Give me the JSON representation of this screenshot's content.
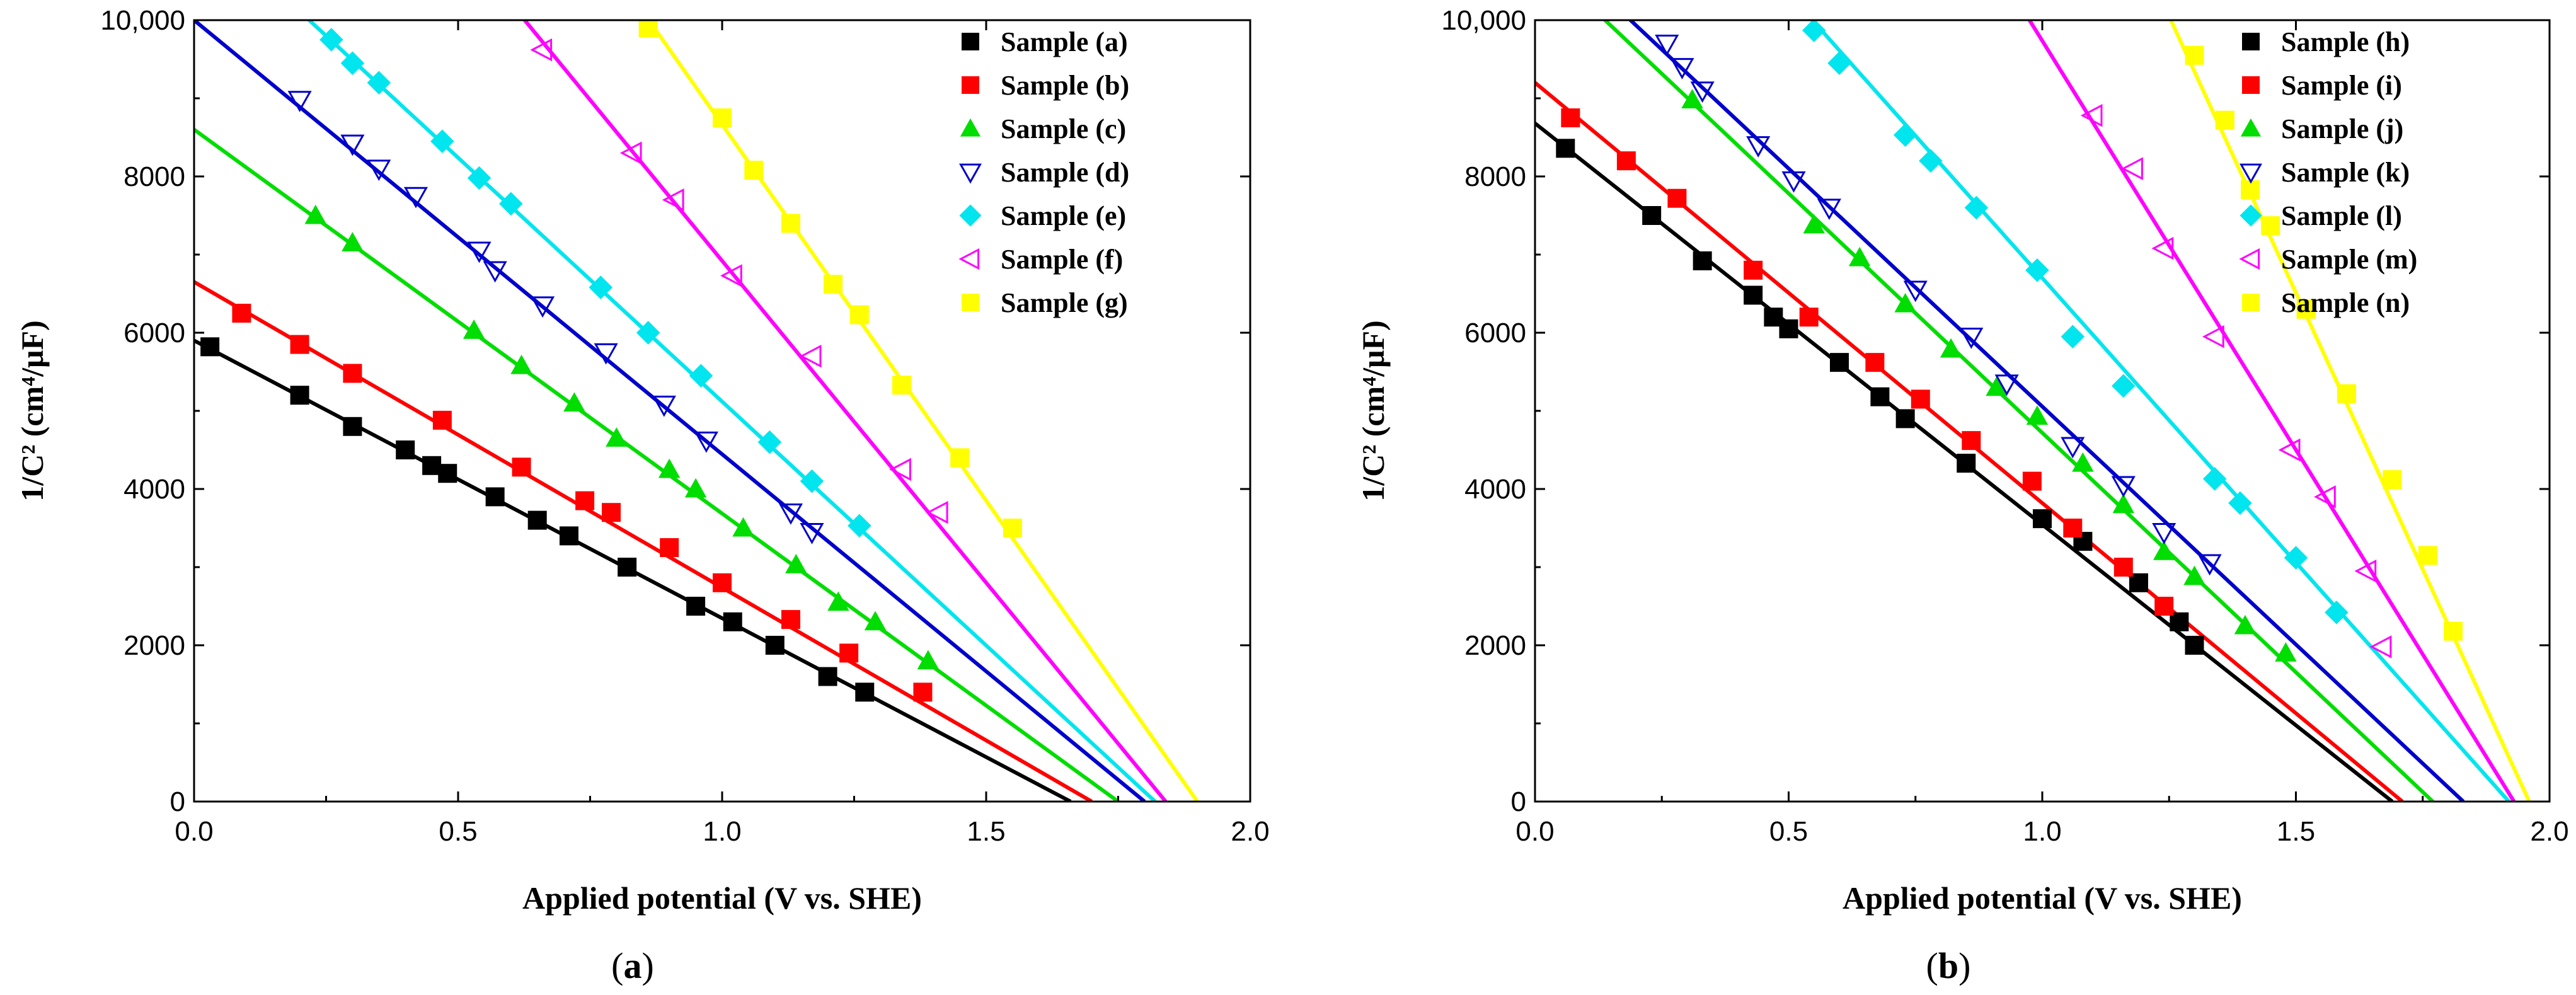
{
  "colors": {
    "a": "#000000",
    "b": "#ff0000",
    "c": "#00dd00",
    "d": "#0000cc",
    "e": "#00e5ee",
    "f": "#ff00ff",
    "g": "#ffff00"
  },
  "chart_data": [
    {
      "type": "scatter",
      "caption_letter": "a",
      "xlabel": "Applied potential (V vs. SHE)",
      "ylabel": "1/C² (cm⁴/μF)",
      "xlim": [
        0,
        2.0
      ],
      "ylim": [
        0,
        10000
      ],
      "x_ticks": [
        "0.0",
        "0.5",
        "1.0",
        "1.5",
        "2.0"
      ],
      "y_ticks": [
        "0",
        "2000",
        "4000",
        "6000",
        "8000",
        "10,000"
      ],
      "grid": false,
      "legend_position": "top-right",
      "series": [
        {
          "name": "Sample (a)",
          "marker": "square",
          "color": "#000000",
          "fit": [
            [
              0,
              5900
            ],
            [
              1.66,
              0
            ]
          ],
          "points": [
            [
              0.03,
              5820
            ],
            [
              0.2,
              5200
            ],
            [
              0.3,
              4800
            ],
            [
              0.4,
              4500
            ],
            [
              0.45,
              4300
            ],
            [
              0.48,
              4200
            ],
            [
              0.57,
              3900
            ],
            [
              0.65,
              3600
            ],
            [
              0.71,
              3400
            ],
            [
              0.82,
              3000
            ],
            [
              0.95,
              2500
            ],
            [
              1.02,
              2300
            ],
            [
              1.1,
              2000
            ],
            [
              1.2,
              1600
            ],
            [
              1.27,
              1400
            ]
          ]
        },
        {
          "name": "Sample (b)",
          "marker": "square",
          "color": "#ff0000",
          "fit": [
            [
              0,
              6650
            ],
            [
              1.7,
              0
            ]
          ],
          "points": [
            [
              0.09,
              6250
            ],
            [
              0.2,
              5850
            ],
            [
              0.3,
              5480
            ],
            [
              0.47,
              4880
            ],
            [
              0.62,
              4280
            ],
            [
              0.74,
              3850
            ],
            [
              0.79,
              3700
            ],
            [
              0.9,
              3250
            ],
            [
              1.0,
              2800
            ],
            [
              1.13,
              2330
            ],
            [
              1.24,
              1900
            ],
            [
              1.38,
              1400
            ]
          ]
        },
        {
          "name": "Sample (c)",
          "marker": "triangle-up",
          "color": "#00dd00",
          "fit": [
            [
              0,
              8600
            ],
            [
              1.75,
              0
            ]
          ],
          "points": [
            [
              0.23,
              7500
            ],
            [
              0.3,
              7150
            ],
            [
              0.53,
              6030
            ],
            [
              0.62,
              5580
            ],
            [
              0.72,
              5100
            ],
            [
              0.8,
              4650
            ],
            [
              0.9,
              4250
            ],
            [
              0.95,
              4000
            ],
            [
              1.04,
              3500
            ],
            [
              1.14,
              3030
            ],
            [
              1.22,
              2550
            ],
            [
              1.29,
              2300
            ],
            [
              1.39,
              1800
            ]
          ]
        },
        {
          "name": "Sample (d)",
          "marker": "triangle-down-open",
          "color": "#0000cc",
          "fit": [
            [
              0,
              10000
            ],
            [
              1.8,
              0
            ]
          ],
          "points": [
            [
              0.2,
              8980
            ],
            [
              0.3,
              8420
            ],
            [
              0.35,
              8100
            ],
            [
              0.42,
              7750
            ],
            [
              0.54,
              7050
            ],
            [
              0.57,
              6800
            ],
            [
              0.66,
              6350
            ],
            [
              0.78,
              5750
            ],
            [
              0.89,
              5080
            ],
            [
              0.97,
              4620
            ],
            [
              1.13,
              3700
            ],
            [
              1.17,
              3450
            ]
          ]
        },
        {
          "name": "Sample (e)",
          "marker": "diamond",
          "color": "#00e5ee",
          "fit": [
            [
              0.21,
              10050
            ],
            [
              1.82,
              0
            ]
          ],
          "points": [
            [
              0.26,
              9750
            ],
            [
              0.3,
              9450
            ],
            [
              0.35,
              9200
            ],
            [
              0.47,
              8450
            ],
            [
              0.54,
              7980
            ],
            [
              0.6,
              7650
            ],
            [
              0.77,
              6580
            ],
            [
              0.86,
              6000
            ],
            [
              0.96,
              5450
            ],
            [
              1.09,
              4600
            ],
            [
              1.17,
              4100
            ],
            [
              1.26,
              3530
            ]
          ]
        },
        {
          "name": "Sample (f)",
          "marker": "triangle-left-open",
          "color": "#ff00ff",
          "fit": [
            [
              0.62,
              10050
            ],
            [
              1.84,
              0
            ]
          ],
          "points": [
            [
              0.66,
              9620
            ],
            [
              0.83,
              8300
            ],
            [
              0.91,
              7700
            ],
            [
              1.02,
              6730
            ],
            [
              1.17,
              5700
            ],
            [
              1.34,
              4250
            ],
            [
              1.41,
              3700
            ]
          ]
        },
        {
          "name": "Sample (g)",
          "marker": "square",
          "color": "#ffff00",
          "fit": [
            [
              0.83,
              10300
            ],
            [
              1.9,
              0
            ]
          ],
          "points": [
            [
              0.86,
              9900
            ],
            [
              1.0,
              8750
            ],
            [
              1.06,
              8080
            ],
            [
              1.13,
              7400
            ],
            [
              1.21,
              6620
            ],
            [
              1.26,
              6230
            ],
            [
              1.34,
              5330
            ],
            [
              1.45,
              4400
            ],
            [
              1.55,
              3500
            ]
          ]
        }
      ]
    },
    {
      "type": "scatter",
      "caption_letter": "b",
      "xlabel": "Applied potential (V vs. SHE)",
      "ylabel": "1/C² (cm⁴/μF)",
      "xlim": [
        0,
        2.0
      ],
      "ylim": [
        0,
        10000
      ],
      "x_ticks": [
        "0.0",
        "0.5",
        "1.0",
        "1.5",
        "2.0"
      ],
      "y_ticks": [
        "0",
        "2000",
        "4000",
        "6000",
        "8000",
        "10,000"
      ],
      "grid": false,
      "legend_position": "top-right",
      "series": [
        {
          "name": "Sample (h)",
          "marker": "square",
          "color": "#000000",
          "fit": [
            [
              0,
              8680
            ],
            [
              1.69,
              0
            ]
          ],
          "points": [
            [
              0.06,
              8360
            ],
            [
              0.23,
              7500
            ],
            [
              0.33,
              6920
            ],
            [
              0.43,
              6480
            ],
            [
              0.47,
              6200
            ],
            [
              0.5,
              6050
            ],
            [
              0.6,
              5620
            ],
            [
              0.68,
              5180
            ],
            [
              0.73,
              4900
            ],
            [
              0.85,
              4330
            ],
            [
              1.0,
              3620
            ],
            [
              1.08,
              3330
            ],
            [
              1.19,
              2800
            ],
            [
              1.27,
              2300
            ],
            [
              1.3,
              2000
            ]
          ]
        },
        {
          "name": "Sample (i)",
          "marker": "square",
          "color": "#ff0000",
          "fit": [
            [
              0,
              9200
            ],
            [
              1.71,
              0
            ]
          ],
          "points": [
            [
              0.07,
              8750
            ],
            [
              0.18,
              8200
            ],
            [
              0.28,
              7720
            ],
            [
              0.43,
              6800
            ],
            [
              0.54,
              6200
            ],
            [
              0.67,
              5620
            ],
            [
              0.76,
              5150
            ],
            [
              0.86,
              4620
            ],
            [
              0.98,
              4100
            ],
            [
              1.06,
              3500
            ],
            [
              1.16,
              3000
            ],
            [
              1.24,
              2500
            ]
          ]
        },
        {
          "name": "Sample (j)",
          "marker": "triangle-up",
          "color": "#00dd00",
          "fit": [
            [
              0.13,
              10050
            ],
            [
              1.77,
              0
            ]
          ],
          "points": [
            [
              0.31,
              8980
            ],
            [
              0.55,
              7380
            ],
            [
              0.64,
              6960
            ],
            [
              0.73,
              6370
            ],
            [
              0.82,
              5790
            ],
            [
              0.91,
              5300
            ],
            [
              0.99,
              4930
            ],
            [
              1.08,
              4330
            ],
            [
              1.16,
              3800
            ],
            [
              1.24,
              3200
            ],
            [
              1.3,
              2880
            ],
            [
              1.4,
              2250
            ],
            [
              1.48,
              1900
            ]
          ]
        },
        {
          "name": "Sample (k)",
          "marker": "triangle-down-open",
          "color": "#0000cc",
          "fit": [
            [
              0.18,
              10050
            ],
            [
              1.83,
              0
            ]
          ],
          "points": [
            [
              0.26,
              9700
            ],
            [
              0.29,
              9400
            ],
            [
              0.33,
              9100
            ],
            [
              0.44,
              8400
            ],
            [
              0.51,
              7950
            ],
            [
              0.58,
              7600
            ],
            [
              0.75,
              6550
            ],
            [
              0.86,
              5950
            ],
            [
              0.93,
              5350
            ],
            [
              1.06,
              4550
            ],
            [
              1.16,
              4050
            ],
            [
              1.24,
              3450
            ],
            [
              1.33,
              3050
            ]
          ]
        },
        {
          "name": "Sample (l)",
          "marker": "diamond",
          "color": "#00e5ee",
          "fit": [
            [
              0.54,
              10050
            ],
            [
              1.92,
              0
            ]
          ],
          "points": [
            [
              0.55,
              9870
            ],
            [
              0.6,
              9450
            ],
            [
              0.73,
              8530
            ],
            [
              0.78,
              8200
            ],
            [
              0.87,
              7600
            ],
            [
              0.99,
              6800
            ],
            [
              1.06,
              5950
            ],
            [
              1.16,
              5320
            ],
            [
              1.34,
              4130
            ],
            [
              1.39,
              3820
            ],
            [
              1.5,
              3120
            ],
            [
              1.58,
              2420
            ]
          ]
        },
        {
          "name": "Sample (m)",
          "marker": "triangle-left-open",
          "color": "#ff00ff",
          "fit": [
            [
              0.97,
              10050
            ],
            [
              1.93,
              0
            ]
          ],
          "points": [
            [
              1.1,
              8780
            ],
            [
              1.18,
              8100
            ],
            [
              1.24,
              7080
            ],
            [
              1.34,
              5950
            ],
            [
              1.49,
              4500
            ],
            [
              1.56,
              3900
            ],
            [
              1.64,
              2950
            ],
            [
              1.67,
              1980
            ]
          ]
        },
        {
          "name": "Sample (n)",
          "marker": "square",
          "color": "#ffff00",
          "fit": [
            [
              1.25,
              10050
            ],
            [
              1.96,
              0
            ]
          ],
          "points": [
            [
              1.3,
              9550
            ],
            [
              1.36,
              8720
            ],
            [
              1.41,
              7830
            ],
            [
              1.45,
              7370
            ],
            [
              1.52,
              6300
            ],
            [
              1.6,
              5220
            ],
            [
              1.69,
              4120
            ],
            [
              1.76,
              3150
            ],
            [
              1.81,
              2180
            ]
          ]
        }
      ]
    }
  ]
}
